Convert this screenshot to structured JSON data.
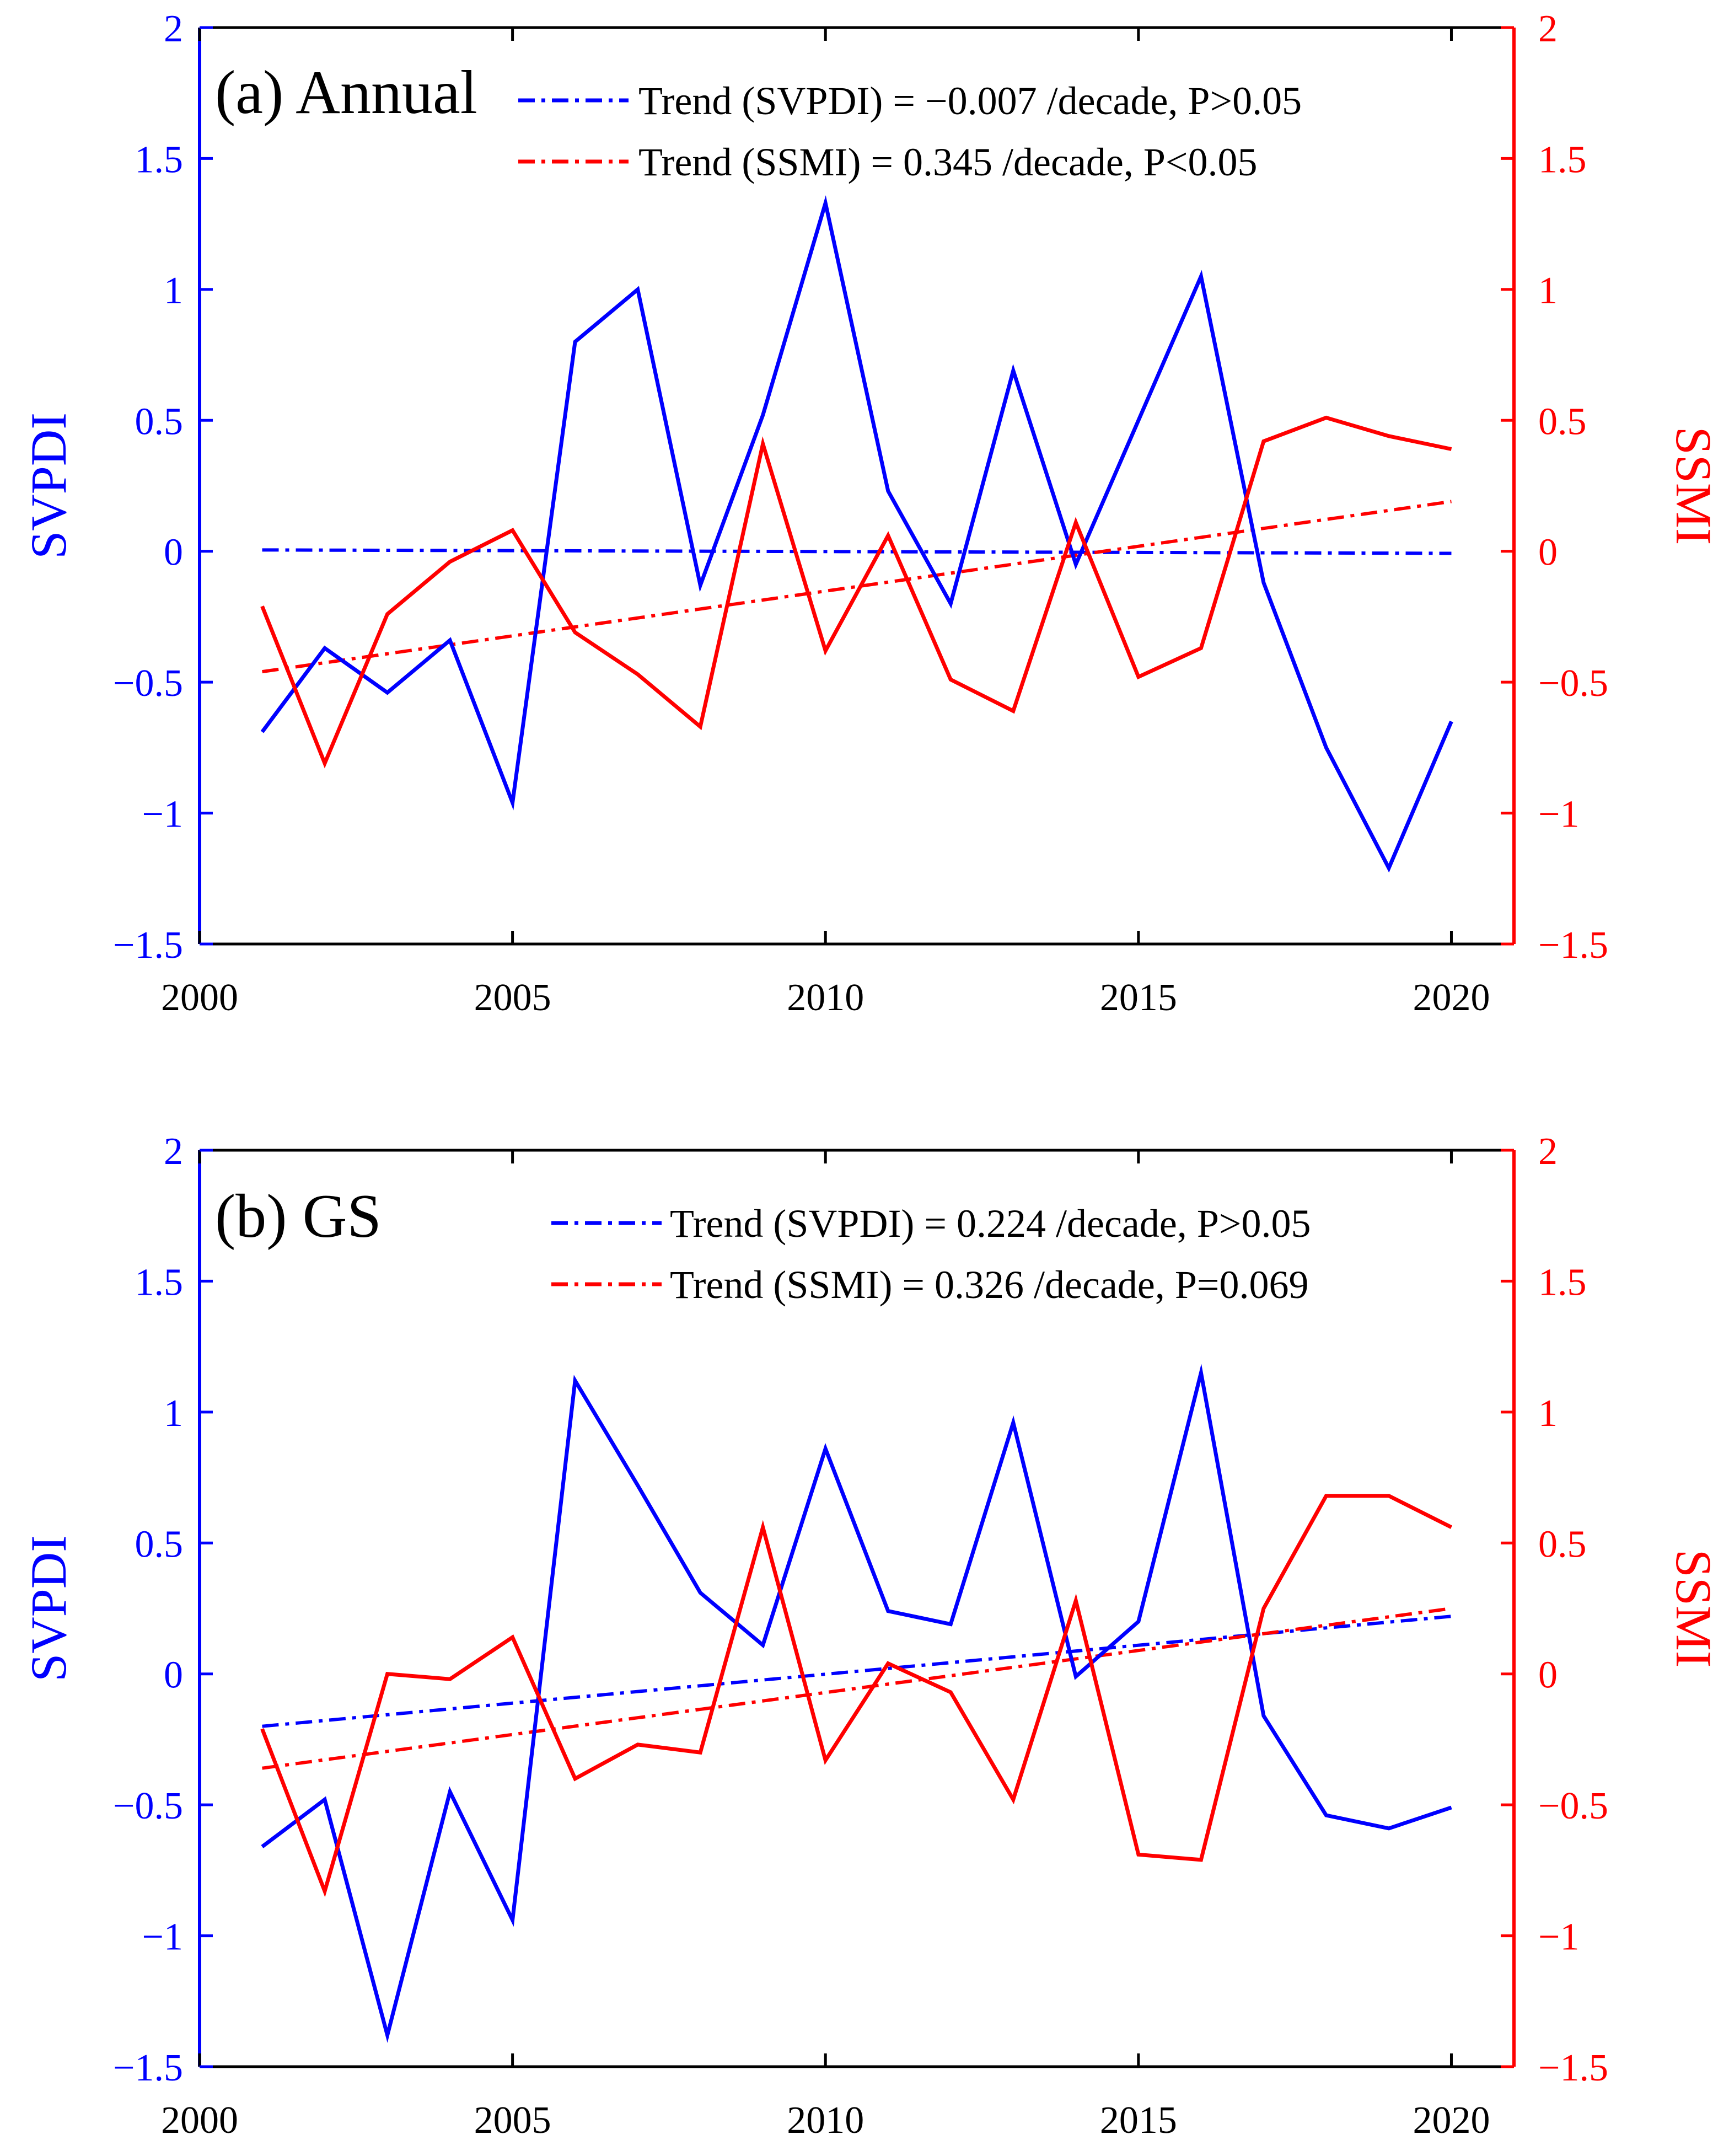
{
  "chart_data": [
    {
      "type": "line",
      "panel_label": "(a) Annual",
      "x": [
        2001,
        2002,
        2003,
        2004,
        2005,
        2006,
        2007,
        2008,
        2009,
        2010,
        2011,
        2012,
        2013,
        2014,
        2015,
        2016,
        2017,
        2018,
        2019,
        2020
      ],
      "xlim": [
        2000,
        2021
      ],
      "xticks": [
        2000,
        2005,
        2010,
        2015,
        2020
      ],
      "xtick_labels": [
        "2000",
        "2005",
        "2010",
        "2015",
        "2020"
      ],
      "ylim": [
        -1.5,
        2
      ],
      "yticks": [
        -1.5,
        -1,
        -0.5,
        0,
        0.5,
        1,
        1.5,
        2
      ],
      "yticklabels_left": [
        "−1.5",
        "−1",
        "−0.5",
        "0",
        "0.5",
        "1",
        "1.5",
        "2"
      ],
      "yticklabels_right": [
        "−1.5",
        "−1",
        "−0.5",
        "0",
        "0.5",
        "1",
        "1.5",
        "2"
      ],
      "ylabel_left": "SVPDI",
      "ylabel_right": "SSMI",
      "series": [
        {
          "name": "SVPDI",
          "axis": "left",
          "color": "#0000ff",
          "values": [
            -0.69,
            -0.37,
            -0.54,
            -0.34,
            -0.96,
            0.8,
            1.0,
            -0.13,
            0.52,
            1.33,
            0.23,
            -0.2,
            0.69,
            -0.05,
            0.5,
            1.05,
            -0.12,
            -0.75,
            -1.21,
            -0.65
          ]
        },
        {
          "name": "SSMI",
          "axis": "right",
          "color": "#ff0000",
          "values": [
            -0.21,
            -0.81,
            -0.24,
            -0.04,
            0.08,
            -0.31,
            -0.47,
            -0.67,
            0.41,
            -0.38,
            0.06,
            -0.49,
            -0.61,
            0.11,
            -0.48,
            -0.37,
            0.42,
            0.51,
            0.44,
            0.39
          ]
        }
      ],
      "trends": [
        {
          "name": "Trend (SVPDI)",
          "color": "#0000ff",
          "start": 0.005,
          "end": -0.008,
          "legend": "Trend (SVPDI) = −0.007 /decade, P>0.05"
        },
        {
          "name": "Trend (SSMI)",
          "color": "#ff0000",
          "start": -0.46,
          "end": 0.19,
          "legend": "Trend (SSMI) = 0.345 /decade, P<0.05"
        }
      ]
    },
    {
      "type": "line",
      "panel_label": "(b) GS",
      "x": [
        2001,
        2002,
        2003,
        2004,
        2005,
        2006,
        2007,
        2008,
        2009,
        2010,
        2011,
        2012,
        2013,
        2014,
        2015,
        2016,
        2017,
        2018,
        2019,
        2020
      ],
      "xlim": [
        2000,
        2021
      ],
      "xticks": [
        2000,
        2005,
        2010,
        2015,
        2020
      ],
      "xtick_labels": [
        "2000",
        "2005",
        "2010",
        "2015",
        "2020"
      ],
      "ylim": [
        -1.5,
        2
      ],
      "yticks": [
        -1.5,
        -1,
        -0.5,
        0,
        0.5,
        1,
        1.5,
        2
      ],
      "yticklabels_left": [
        "−1.5",
        "−1",
        "−0.5",
        "0",
        "0.5",
        "1",
        "1.5",
        "2"
      ],
      "yticklabels_right": [
        "−1.5",
        "−1",
        "−0.5",
        "0",
        "0.5",
        "1",
        "1.5",
        "2"
      ],
      "ylabel_left": "SVPDI",
      "ylabel_right": "SSMI",
      "series": [
        {
          "name": "SVPDI",
          "axis": "left",
          "color": "#0000ff",
          "values": [
            -0.66,
            -0.48,
            -1.38,
            -0.45,
            -0.94,
            1.12,
            0.72,
            0.31,
            0.11,
            0.86,
            0.24,
            0.19,
            0.96,
            -0.01,
            0.2,
            1.15,
            -0.16,
            -0.54,
            -0.59,
            -0.51
          ]
        },
        {
          "name": "SSMI",
          "axis": "right",
          "color": "#ff0000",
          "values": [
            -0.21,
            -0.83,
            0.0,
            -0.02,
            0.14,
            -0.4,
            -0.27,
            -0.3,
            0.56,
            -0.33,
            0.04,
            -0.07,
            -0.48,
            0.28,
            -0.69,
            -0.71,
            0.25,
            0.68,
            0.68,
            0.56
          ]
        }
      ],
      "trends": [
        {
          "name": "Trend (SVPDI)",
          "color": "#0000ff",
          "start": -0.2,
          "end": 0.22,
          "legend": "Trend (SVPDI) = 0.224 /decade, P>0.05"
        },
        {
          "name": "Trend (SSMI)",
          "color": "#ff0000",
          "start": -0.36,
          "end": 0.25,
          "legend": "Trend (SSMI) = 0.326 /decade, P=0.069"
        }
      ]
    }
  ]
}
